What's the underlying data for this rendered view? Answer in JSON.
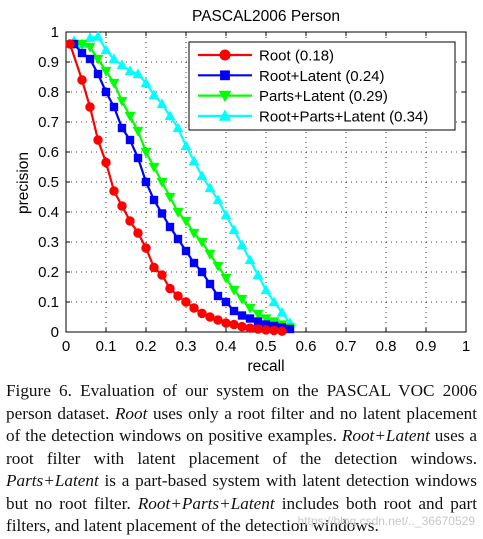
{
  "chart_data": {
    "type": "line",
    "title": "PASCAL2006 Person",
    "xlabel": "recall",
    "ylabel": "precision",
    "xlim": [
      0,
      1
    ],
    "ylim": [
      0,
      1
    ],
    "xticks": [
      "0",
      "0.1",
      "0.2",
      "0.3",
      "0.4",
      "0.5",
      "0.6",
      "0.7",
      "0.8",
      "0.9",
      "1"
    ],
    "yticks": [
      "0",
      "0.1",
      "0.2",
      "0.3",
      "0.4",
      "0.5",
      "0.6",
      "0.7",
      "0.8",
      "0.9",
      "1"
    ],
    "grid": true,
    "legend_position": "top-right",
    "series": [
      {
        "name": "Root (0.18)",
        "color": "#ff0000",
        "marker": "circle",
        "x": [
          0.01,
          0.04,
          0.06,
          0.08,
          0.1,
          0.12,
          0.14,
          0.16,
          0.18,
          0.2,
          0.22,
          0.24,
          0.26,
          0.28,
          0.3,
          0.32,
          0.34,
          0.36,
          0.38,
          0.4,
          0.42,
          0.44,
          0.46,
          0.48,
          0.5,
          0.52,
          0.54
        ],
        "y": [
          0.96,
          0.84,
          0.75,
          0.64,
          0.565,
          0.47,
          0.42,
          0.37,
          0.33,
          0.28,
          0.215,
          0.19,
          0.145,
          0.12,
          0.1,
          0.08,
          0.062,
          0.05,
          0.04,
          0.03,
          0.025,
          0.018,
          0.013,
          0.01,
          0.007,
          0.005,
          0.003
        ]
      },
      {
        "name": "Root+Latent (0.24)",
        "color": "#0000ff",
        "marker": "square",
        "x": [
          0.02,
          0.04,
          0.06,
          0.08,
          0.1,
          0.12,
          0.14,
          0.16,
          0.18,
          0.2,
          0.22,
          0.24,
          0.26,
          0.28,
          0.3,
          0.32,
          0.34,
          0.36,
          0.38,
          0.4,
          0.42,
          0.44,
          0.46,
          0.48,
          0.5,
          0.52,
          0.54,
          0.56
        ],
        "y": [
          0.96,
          0.93,
          0.91,
          0.86,
          0.8,
          0.75,
          0.68,
          0.64,
          0.58,
          0.5,
          0.44,
          0.395,
          0.35,
          0.31,
          0.27,
          0.23,
          0.2,
          0.16,
          0.12,
          0.1,
          0.07,
          0.055,
          0.045,
          0.035,
          0.025,
          0.02,
          0.015,
          0.01
        ]
      },
      {
        "name": "Parts+Latent (0.29)",
        "color": "#00ff00",
        "marker": "triangle-down",
        "x": [
          0.02,
          0.04,
          0.06,
          0.08,
          0.1,
          0.12,
          0.14,
          0.16,
          0.18,
          0.2,
          0.22,
          0.24,
          0.26,
          0.28,
          0.3,
          0.32,
          0.34,
          0.36,
          0.38,
          0.4,
          0.42,
          0.44,
          0.46,
          0.48,
          0.5,
          0.52,
          0.54,
          0.56
        ],
        "y": [
          0.96,
          0.96,
          0.95,
          0.91,
          0.87,
          0.83,
          0.77,
          0.72,
          0.67,
          0.6,
          0.55,
          0.5,
          0.45,
          0.4,
          0.37,
          0.33,
          0.3,
          0.26,
          0.22,
          0.18,
          0.14,
          0.11,
          0.08,
          0.06,
          0.045,
          0.035,
          0.025,
          0.015
        ]
      },
      {
        "name": "Root+Parts+Latent (0.34)",
        "color": "#00ffff",
        "marker": "triangle-up",
        "x": [
          0.02,
          0.04,
          0.06,
          0.08,
          0.1,
          0.12,
          0.14,
          0.16,
          0.18,
          0.2,
          0.22,
          0.24,
          0.26,
          0.28,
          0.3,
          0.32,
          0.34,
          0.36,
          0.38,
          0.4,
          0.42,
          0.44,
          0.46,
          0.48,
          0.5,
          0.52,
          0.54,
          0.56
        ],
        "y": [
          0.97,
          0.96,
          0.98,
          0.985,
          0.94,
          0.91,
          0.89,
          0.87,
          0.86,
          0.83,
          0.79,
          0.76,
          0.72,
          0.68,
          0.62,
          0.57,
          0.52,
          0.48,
          0.44,
          0.39,
          0.34,
          0.29,
          0.24,
          0.19,
          0.14,
          0.1,
          0.065,
          0.03
        ]
      }
    ]
  },
  "caption": {
    "parts": [
      {
        "text": "Figure 6. Evaluation of our system on the PASCAL VOC 2006 person dataset. ",
        "italic": false
      },
      {
        "text": "Root",
        "italic": true
      },
      {
        "text": " uses only a root filter and no latent placement of the detection windows on positive examples. ",
        "italic": false
      },
      {
        "text": "Root+Latent",
        "italic": true
      },
      {
        "text": " uses a root filter with latent placement of the detection windows. ",
        "italic": false
      },
      {
        "text": "Parts+Latent",
        "italic": true
      },
      {
        "text": " is a part-based system with latent detection windows but no root filter. ",
        "italic": false
      },
      {
        "text": "Root+Parts+Latent",
        "italic": true
      },
      {
        "text": " includes both root and part filters, and latent placement of the detection windows.",
        "italic": false
      }
    ]
  },
  "watermark": "https://blog.csdn.net/.._36670529"
}
